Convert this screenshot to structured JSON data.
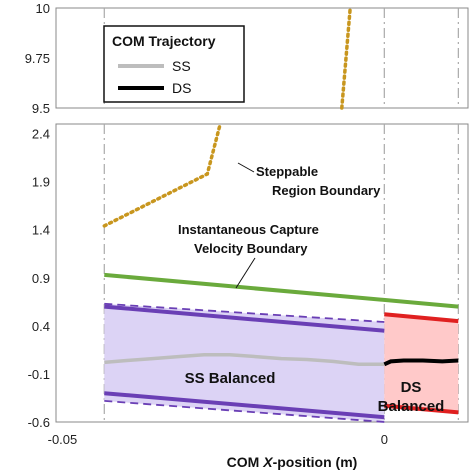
{
  "chart_data": {
    "type": "line",
    "xlabel": "COM X-position (m)",
    "xlabel_parts": {
      "pre": "COM ",
      "var": "X",
      "post": "-position (m)"
    },
    "ylabel": "",
    "broken_y_axis": true,
    "upper_ylim": [
      9.5,
      10.0
    ],
    "upper_yticks": [
      "10",
      "9.75",
      "9.5"
    ],
    "lower_ylim": [
      -0.6,
      2.5
    ],
    "lower_yticks": [
      "2.4",
      "1.9",
      "1.4",
      "0.9",
      "0.4",
      "-0.1",
      "-0.6"
    ],
    "xlim": [
      -0.051,
      0.013
    ],
    "xticks": [
      "-0.05",
      "0"
    ],
    "legend": {
      "title": "COM Trajectory",
      "placement": "top-left",
      "entries": [
        {
          "label": "SS",
          "color": "#bdbdbd"
        },
        {
          "label": "DS",
          "color": "#000000"
        }
      ]
    },
    "annotations": {
      "steppable": [
        "Steppable",
        "Region Boundary"
      ],
      "capture": [
        "Instantaneous Capture",
        "Velocity Boundary"
      ],
      "ss_region": "SS Balanced",
      "ds_region": [
        "DS",
        "Balanced"
      ]
    },
    "colors": {
      "steppable": "#c8961e",
      "capture": "#6aaa3c",
      "ss_fill": "#dcd3f5",
      "ss_edge": "#6a3fb5",
      "ds_fill": "#ffc9c9",
      "ds_edge": "#e02020",
      "ss_traj": "#bdbdbd",
      "ds_traj": "#000000"
    },
    "series": {
      "steppable_lower": {
        "x": [
          -0.0435,
          -0.0275,
          -0.0255
        ],
        "y": [
          1.44,
          1.98,
          2.5
        ]
      },
      "steppable_upper": {
        "x": [
          -0.0066,
          -0.0053
        ],
        "y": [
          9.5,
          10.0
        ]
      },
      "capture_boundary": {
        "x": [
          -0.0435,
          0.0115
        ],
        "y": [
          0.93,
          0.6
        ]
      },
      "ss_upper_solid": {
        "x": [
          -0.0435,
          0.0
        ],
        "y": [
          0.6,
          0.35
        ]
      },
      "ss_lower_solid": {
        "x": [
          -0.0435,
          0.0
        ],
        "y": [
          -0.3,
          -0.55
        ]
      },
      "ss_upper_dashed": {
        "x": [
          -0.0435,
          0.0
        ],
        "y": [
          0.63,
          0.44
        ]
      },
      "ss_lower_dashed": {
        "x": [
          -0.0435,
          0.0
        ],
        "y": [
          -0.38,
          -0.6
        ]
      },
      "ds_upper": {
        "x": [
          0.0,
          0.0115
        ],
        "y": [
          0.52,
          0.45
        ]
      },
      "ds_lower": {
        "x": [
          0.0,
          0.0115
        ],
        "y": [
          -0.43,
          -0.5
        ]
      },
      "ss_trajectory": {
        "x": [
          -0.0435,
          -0.04,
          -0.036,
          -0.032,
          -0.028,
          -0.024,
          -0.02,
          -0.016,
          -0.012,
          -0.008,
          -0.004,
          0.0
        ],
        "y": [
          0.02,
          0.04,
          0.06,
          0.08,
          0.1,
          0.1,
          0.08,
          0.06,
          0.05,
          0.03,
          0.0,
          0.0
        ]
      },
      "ds_trajectory": {
        "x": [
          0.0,
          0.001,
          0.003,
          0.006,
          0.009,
          0.0115
        ],
        "y": [
          0.0,
          0.03,
          0.04,
          0.04,
          0.03,
          0.04
        ]
      }
    },
    "vertical_guides_x": [
      -0.0435,
      0.0,
      0.0115
    ]
  }
}
